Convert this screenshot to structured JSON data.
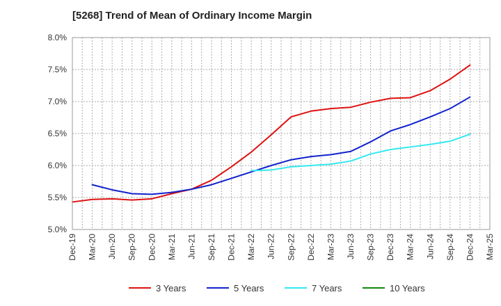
{
  "title": "[5268]  Trend of Mean of Ordinary Income Margin",
  "chart_data": {
    "type": "line",
    "title": "[5268]  Trend of Mean of Ordinary Income Margin",
    "y_unit": "%",
    "ylim": [
      5.0,
      8.0
    ],
    "y_ticks": [
      "5.0%",
      "5.5%",
      "6.0%",
      "6.5%",
      "7.0%",
      "7.5%",
      "8.0%"
    ],
    "y_tick_values": [
      5.0,
      5.5,
      6.0,
      6.5,
      7.0,
      7.5,
      8.0
    ],
    "x_ticks": [
      "Dec-19",
      "Mar-20",
      "Jun-20",
      "Sep-20",
      "Dec-20",
      "Mar-21",
      "Jun-21",
      "Sep-21",
      "Dec-21",
      "Mar-22",
      "Jun-22",
      "Sep-22",
      "Dec-22",
      "Mar-23",
      "Jun-23",
      "Sep-23",
      "Dec-23",
      "Mar-24",
      "Jun-24",
      "Sep-24",
      "Dec-24",
      "Mar-25"
    ],
    "grid": true,
    "legend_position": "bottom",
    "series": [
      {
        "name": "3 Years",
        "color": "#dd1111",
        "points": [
          [
            "Dec-19",
            5.43
          ],
          [
            "Mar-20",
            5.47
          ],
          [
            "Jun-20",
            5.48
          ],
          [
            "Sep-20",
            5.46
          ],
          [
            "Dec-20",
            5.48
          ],
          [
            "Mar-21",
            5.56
          ],
          [
            "Jun-21",
            5.63
          ],
          [
            "Sep-21",
            5.77
          ],
          [
            "Dec-21",
            5.98
          ],
          [
            "Mar-22",
            6.21
          ],
          [
            "Jun-22",
            6.48
          ],
          [
            "Sep-22",
            6.76
          ],
          [
            "Dec-22",
            6.85
          ],
          [
            "Mar-23",
            6.89
          ],
          [
            "Jun-23",
            6.91
          ],
          [
            "Sep-23",
            6.99
          ],
          [
            "Dec-23",
            7.05
          ],
          [
            "Mar-24",
            7.06
          ],
          [
            "Jun-24",
            7.17
          ],
          [
            "Sep-24",
            7.35
          ],
          [
            "Dec-24",
            7.57
          ]
        ]
      },
      {
        "name": "5 Years",
        "color": "#1122cc",
        "points": [
          [
            "Mar-20",
            5.7
          ],
          [
            "Jun-20",
            5.62
          ],
          [
            "Sep-20",
            5.56
          ],
          [
            "Dec-20",
            5.55
          ],
          [
            "Mar-21",
            5.58
          ],
          [
            "Jun-21",
            5.63
          ],
          [
            "Sep-21",
            5.7
          ],
          [
            "Dec-21",
            5.8
          ],
          [
            "Mar-22",
            5.9
          ],
          [
            "Jun-22",
            6.0
          ],
          [
            "Sep-22",
            6.09
          ],
          [
            "Dec-22",
            6.14
          ],
          [
            "Mar-23",
            6.17
          ],
          [
            "Jun-23",
            6.22
          ],
          [
            "Sep-23",
            6.37
          ],
          [
            "Dec-23",
            6.54
          ],
          [
            "Mar-24",
            6.64
          ],
          [
            "Jun-24",
            6.76
          ],
          [
            "Sep-24",
            6.89
          ],
          [
            "Dec-24",
            7.07
          ]
        ]
      },
      {
        "name": "7 Years",
        "color": "#33e8f0",
        "points": [
          [
            "Mar-22",
            5.92
          ],
          [
            "Jun-22",
            5.93
          ],
          [
            "Sep-22",
            5.98
          ],
          [
            "Dec-22",
            6.0
          ],
          [
            "Mar-23",
            6.02
          ],
          [
            "Jun-23",
            6.07
          ],
          [
            "Sep-23",
            6.18
          ],
          [
            "Dec-23",
            6.25
          ],
          [
            "Mar-24",
            6.29
          ],
          [
            "Jun-24",
            6.33
          ],
          [
            "Sep-24",
            6.38
          ],
          [
            "Dec-24",
            6.49
          ]
        ]
      },
      {
        "name": "10 Years",
        "color": "#118811",
        "points": []
      }
    ]
  }
}
